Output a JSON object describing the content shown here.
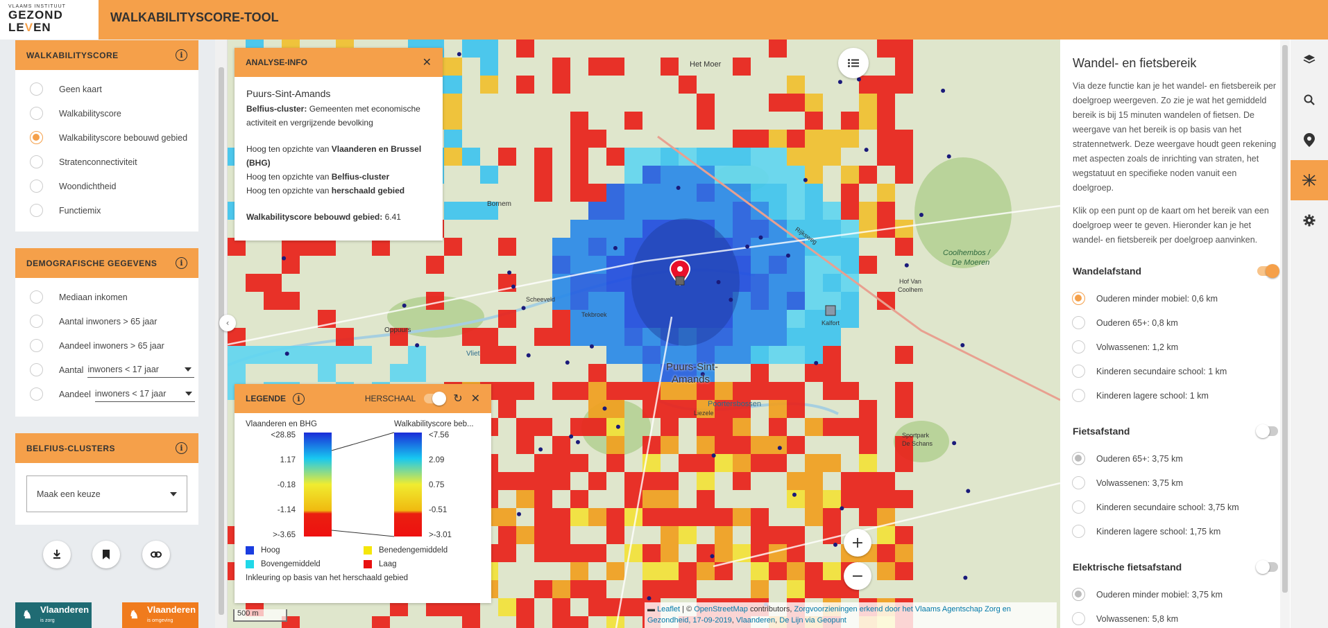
{
  "header": {
    "logo_top": "VLAAMS INSTITUUT",
    "logo_line1": "GEZOND",
    "logo_line2_a": "LE",
    "logo_line2_v": "V",
    "logo_line2_b": "EN",
    "title": "WALKABILITYSCORE-TOOL"
  },
  "colors": {
    "accent": "#f5a04a"
  },
  "sidebar": {
    "walkability": {
      "title": "WALKABILITYSCORE",
      "options": [
        "Geen kaart",
        "Walkabilityscore",
        "Walkabilityscore bebouwd gebied",
        "Stratenconnectiviteit",
        "Woondichtheid",
        "Functiemix"
      ],
      "selected_index": 2
    },
    "demografisch": {
      "title": "DEMOGRAFISCHE GEGEVENS",
      "options": [
        "Mediaan inkomen",
        "Aantal inwoners > 65 jaar",
        "Aandeel inwoners > 65 jaar"
      ],
      "aantal_label": "Aantal",
      "aantal_select": "inwoners < 17 jaar",
      "aandeel_label": "Aandeel",
      "aandeel_select": "inwoners < 17 jaar"
    },
    "belfius": {
      "title": "BELFIUS-CLUSTERS",
      "select_placeholder": "Maak een keuze"
    },
    "footer_logos": [
      "Vlaanderen",
      "Vlaanderen"
    ],
    "footer_logo_subs": [
      "is zorg",
      "is omgeving"
    ]
  },
  "analyse": {
    "title": "ANALYSE-INFO",
    "place": "Puurs-Sint-Amands",
    "cluster_label": "Belfius-cluster:",
    "cluster_text": "Gemeenten met economische activiteit en vergrijzende bevolking",
    "line1_pre": "Hoog ten opzichte van",
    "line1_bold": "Vlaanderen en Brussel (BHG)",
    "line2_pre": "Hoog ten opzichte van",
    "line2_bold": "Belfius-cluster",
    "line3_pre": "Hoog ten opzichte van",
    "line3_bold": "herschaald gebied",
    "score_label": "Walkabilityscore bebouwd gebied:",
    "score_value": "6.41"
  },
  "legend": {
    "title": "LEGENDE",
    "herschaal": "HERSCHAAL",
    "left_title": "Vlaanderen en BHG",
    "right_title": "Walkabilityscore beb...",
    "left_ticks": [
      "<28.85",
      "1.17",
      "-0.18",
      "-1.14",
      ">-3.65"
    ],
    "right_ticks": [
      "<7.56",
      "2.09",
      "0.75",
      "-0.51",
      ">-3.01"
    ],
    "items": [
      {
        "label": "Hoog",
        "color": "#1a3de0"
      },
      {
        "label": "Benedengemiddeld",
        "color": "#f5e60a"
      },
      {
        "label": "Bovengemiddeld",
        "color": "#20d8e8"
      },
      {
        "label": "Laag",
        "color": "#e81010"
      }
    ],
    "note": "Inkleuring op basis van het herschaald gebied"
  },
  "map": {
    "labels": [
      "Het Moer",
      "Puurs-Sint-",
      "Amands",
      "Poortersbossen",
      "Coolhembos /",
      "De Moeren",
      "Bornem",
      "Tekbroek",
      "Scheeveld",
      "Oppuurs",
      "Kalfort",
      "Hof Van",
      "Coolhem",
      "Liezele",
      "Sportpark",
      "De Schans",
      "Vliet",
      "Rijksweg"
    ],
    "scale": "500 m",
    "attribution": {
      "leaflet": "Leaflet",
      "sep": " | © ",
      "osm": "OpenStreetMap",
      "contrib": " contributors, ",
      "zorg": "Zorgvoorzieningen erkend door het Vlaams Agentschap Zorg en Gezondheid, 17-09-2019",
      "comma": ", ",
      "vl": "Vlaanderen",
      "comma2": ", ",
      "delijn": "De Lijn via Geopunt"
    }
  },
  "right_panel": {
    "title": "Wandel- en fietsbereik",
    "text1": "Via deze functie kan je het wandel- en fietsbereik per doelgroep weergeven. Zo zie je wat het gemiddeld bereik is bij 15 minuten wandelen of fietsen. De weergave van het bereik is op basis van het stratennetwerk. Deze weergave houdt geen rekening met aspecten zoals de inrichting van straten, het wegstatuut en specifieke noden vanuit een doelgroep.",
    "text2": "Klik op een punt op de kaart om het bereik van een doelgroep weer te geven. Hieronder kan je het wandel- en fietsbereik per doelgroep aanvinken.",
    "sections": [
      {
        "title": "Wandelafstand",
        "on": true,
        "items": [
          "Ouderen minder mobiel: 0,6 km",
          "Ouderen 65+: 0,8 km",
          "Volwassenen: 1,2 km",
          "Kinderen secundaire school: 1 km",
          "Kinderen lagere school: 1 km"
        ],
        "selected": 0
      },
      {
        "title": "Fietsafstand",
        "on": false,
        "items": [
          "Ouderen 65+: 3,75 km",
          "Volwassenen: 3,75 km",
          "Kinderen secundaire school: 3,75 km",
          "Kinderen lagere school: 1,75 km"
        ],
        "selected": 0
      },
      {
        "title": "Elektrische fietsafstand",
        "on": false,
        "items": [
          "Ouderen minder mobiel: 3,75 km",
          "Volwassenen: 5,8 km"
        ],
        "selected": 0
      }
    ]
  },
  "icons": [
    "layers-icon",
    "search-icon",
    "location-pin-icon",
    "walk-bike-icon",
    "settings-icon",
    "list-icon",
    "download-icon",
    "save-icon",
    "link-icon"
  ]
}
